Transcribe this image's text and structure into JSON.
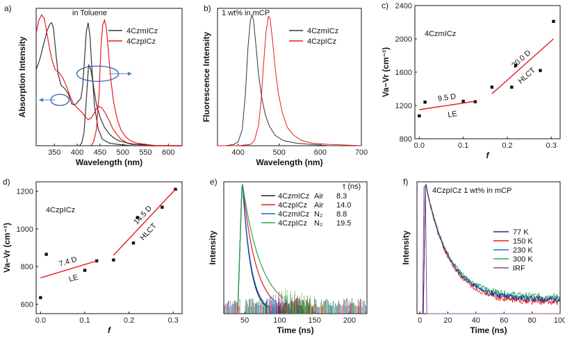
{
  "chart_data": [
    {
      "id": "a",
      "type": "line",
      "panel_label": "a)",
      "annotation": "in Toluene",
      "xlabel": "Wavelength (nm)",
      "ylabel": "Absorption Intensity",
      "xlim": [
        310,
        630
      ],
      "xticks": [
        350,
        400,
        450,
        500,
        550,
        600
      ],
      "legend": [
        "4CzmICz",
        "4CzpICz"
      ],
      "series": [
        {
          "name": "4CzmICz abs",
          "color": "#333333",
          "x": [
            310,
            318,
            326,
            334,
            340,
            344,
            348,
            352,
            358,
            365,
            372,
            380,
            388,
            395,
            402,
            408,
            412,
            416,
            420,
            424,
            428,
            432,
            438,
            446,
            455,
            470,
            490,
            520,
            560,
            600,
            630
          ],
          "y": [
            0.58,
            0.66,
            0.77,
            0.88,
            0.93,
            0.94,
            0.9,
            0.75,
            0.55,
            0.46,
            0.44,
            0.4,
            0.32,
            0.31,
            0.34,
            0.36,
            0.45,
            0.66,
            0.87,
            0.94,
            0.84,
            0.6,
            0.3,
            0.13,
            0.05,
            0.02,
            0.01,
            0.0,
            0.0,
            0.0,
            0.0
          ]
        },
        {
          "name": "4CzpICz abs",
          "color": "#e8191c",
          "x": [
            310,
            316,
            322,
            328,
            334,
            340,
            346,
            352,
            360,
            368,
            376,
            384,
            392,
            400,
            406,
            412,
            418,
            424,
            430,
            436,
            442,
            448,
            454,
            460,
            466,
            472,
            478,
            486,
            496,
            510,
            530,
            560,
            600,
            630
          ],
          "y": [
            0.86,
            0.96,
            1.0,
            0.97,
            0.85,
            0.73,
            0.64,
            0.58,
            0.56,
            0.52,
            0.46,
            0.38,
            0.32,
            0.29,
            0.27,
            0.25,
            0.22,
            0.2,
            0.21,
            0.24,
            0.28,
            0.3,
            0.29,
            0.26,
            0.22,
            0.18,
            0.13,
            0.09,
            0.05,
            0.02,
            0.01,
            0.0,
            0.0,
            0.0
          ]
        },
        {
          "name": "4CzmICz em",
          "color": "#333333",
          "x": [
            405,
            410,
            415,
            420,
            425,
            430,
            436,
            442,
            450,
            460,
            470,
            480,
            490,
            500,
            510,
            520,
            540,
            560,
            580,
            600,
            630
          ],
          "y": [
            0.0,
            0.02,
            0.1,
            0.35,
            0.62,
            0.58,
            0.45,
            0.32,
            0.22,
            0.14,
            0.09,
            0.06,
            0.04,
            0.03,
            0.02,
            0.01,
            0.01,
            0.0,
            0.0,
            0.0,
            0.0
          ]
        },
        {
          "name": "4CzpICz em",
          "color": "#e8191c",
          "x": [
            430,
            436,
            442,
            448,
            452,
            456,
            460,
            464,
            468,
            474,
            480,
            488,
            496,
            506,
            516,
            530,
            550,
            575,
            600,
            630
          ],
          "y": [
            0.0,
            0.03,
            0.12,
            0.4,
            0.75,
            0.92,
            0.96,
            0.9,
            0.74,
            0.5,
            0.33,
            0.2,
            0.12,
            0.07,
            0.04,
            0.02,
            0.01,
            0.0,
            0.0,
            0.0
          ]
        }
      ]
    },
    {
      "id": "b",
      "type": "line",
      "panel_label": "b)",
      "annotation": "1 wt% in mCP",
      "xlabel": "Wavelength (nm)",
      "ylabel": "Fluorescence Intensity",
      "xlim": [
        350,
        700
      ],
      "xticks": [
        400,
        500,
        600,
        700
      ],
      "legend": [
        "4CzmICz",
        "4CzpICz"
      ],
      "series": [
        {
          "name": "4CzmICz",
          "color": "#333333",
          "x": [
            350,
            370,
            390,
            400,
            410,
            418,
            424,
            430,
            434,
            438,
            444,
            450,
            458,
            466,
            476,
            490,
            510,
            540,
            580,
            620,
            700
          ],
          "y": [
            0.0,
            0.0,
            0.01,
            0.03,
            0.12,
            0.4,
            0.75,
            0.96,
            1.0,
            0.95,
            0.75,
            0.54,
            0.36,
            0.24,
            0.15,
            0.08,
            0.04,
            0.02,
            0.01,
            0.0,
            0.0
          ]
        },
        {
          "name": "4CzpICz",
          "color": "#e8191c",
          "x": [
            350,
            400,
            430,
            440,
            450,
            456,
            462,
            468,
            474,
            478,
            484,
            490,
            498,
            508,
            520,
            535,
            555,
            580,
            620,
            700
          ],
          "y": [
            0.0,
            0.0,
            0.01,
            0.04,
            0.16,
            0.34,
            0.62,
            0.87,
            0.99,
            0.97,
            0.8,
            0.6,
            0.4,
            0.25,
            0.14,
            0.08,
            0.04,
            0.02,
            0.01,
            0.0
          ]
        }
      ]
    },
    {
      "id": "c",
      "type": "scatter",
      "panel_label": "c)",
      "title": "4CzmICz",
      "xlabel": "f",
      "ylabel": "Va−Vr (cm⁻¹)",
      "xlim": [
        -0.01,
        0.32
      ],
      "ylim": [
        800,
        2400
      ],
      "xticks": [
        0.0,
        0.1,
        0.2,
        0.3
      ],
      "xtick_labels": [
        "0.0",
        "0.1",
        "0.2",
        "0.3"
      ],
      "yticks": [
        800,
        1200,
        1600,
        2000,
        2400
      ],
      "points": [
        [
          0.0,
          1075
        ],
        [
          0.013,
          1240
        ],
        [
          0.1,
          1250
        ],
        [
          0.127,
          1245
        ],
        [
          0.165,
          1420
        ],
        [
          0.21,
          1420
        ],
        [
          0.219,
          1680
        ],
        [
          0.275,
          1620
        ],
        [
          0.305,
          2210
        ]
      ],
      "fits": [
        {
          "x": [
            0.0,
            0.127
          ],
          "y": [
            1150,
            1250
          ],
          "label": "9.5 D",
          "region": "LE"
        },
        {
          "x": [
            0.165,
            0.305
          ],
          "y": [
            1340,
            2000
          ],
          "label": "20.0 D",
          "region": "HLCT"
        }
      ]
    },
    {
      "id": "d",
      "type": "scatter",
      "panel_label": "d)",
      "title": "4CzpICz",
      "xlabel": "f",
      "ylabel": "Va−Vr (cm⁻¹)",
      "xlim": [
        -0.01,
        0.32
      ],
      "ylim": [
        550,
        1250
      ],
      "xticks": [
        0.0,
        0.1,
        0.2,
        0.3
      ],
      "xtick_labels": [
        "0.0",
        "0.1",
        "0.2",
        "0.3"
      ],
      "yticks": [
        600,
        800,
        1000,
        1200
      ],
      "points": [
        [
          0.0,
          635
        ],
        [
          0.013,
          865
        ],
        [
          0.1,
          780
        ],
        [
          0.127,
          830
        ],
        [
          0.165,
          835
        ],
        [
          0.21,
          925
        ],
        [
          0.219,
          1060
        ],
        [
          0.275,
          1115
        ],
        [
          0.305,
          1210
        ]
      ],
      "fits": [
        {
          "x": [
            0.0,
            0.127
          ],
          "y": [
            740,
            830
          ],
          "label": "7.4 D",
          "region": "LE"
        },
        {
          "x": [
            0.165,
            0.305
          ],
          "y": [
            860,
            1210
          ],
          "label": "14.5 D",
          "region": "HLCT"
        }
      ]
    },
    {
      "id": "e",
      "type": "line",
      "panel_label": "e)",
      "xlabel": "Time (ns)",
      "ylabel": "Intensity",
      "xlim": [
        20,
        225
      ],
      "xticks": [
        50,
        100,
        150,
        200
      ],
      "legend_header": "τ (ns)",
      "legend": [
        {
          "name": "4CzmICz",
          "env": "Air",
          "tau": "8.3",
          "color": "#222222"
        },
        {
          "name": "4CzpICz",
          "env": "Air",
          "tau": "14.0",
          "color": "#e8191c"
        },
        {
          "name": "4CzmICz",
          "env": "N₂",
          "tau": "8.8",
          "color": "#1f5fd6"
        },
        {
          "name": "4CzpICz",
          "env": "N₂",
          "tau": "19.5",
          "color": "#27a844"
        }
      ]
    },
    {
      "id": "f",
      "type": "line",
      "panel_label": "f)",
      "annotation": "4CzpICz 1 wt% in mCP",
      "xlabel": "Time (ns)",
      "ylabel": "Intensity",
      "xlim": [
        -2,
        100
      ],
      "xticks": [
        0,
        20,
        40,
        60,
        80,
        100
      ],
      "legend": [
        {
          "name": "77 K",
          "color": "#1a2f6b"
        },
        {
          "name": "150 K",
          "color": "#e8191c"
        },
        {
          "name": "230 K",
          "color": "#2a6ad6"
        },
        {
          "name": "300 K",
          "color": "#27a844"
        },
        {
          "name": "IRF",
          "color": "#8b4b9e"
        }
      ]
    }
  ]
}
